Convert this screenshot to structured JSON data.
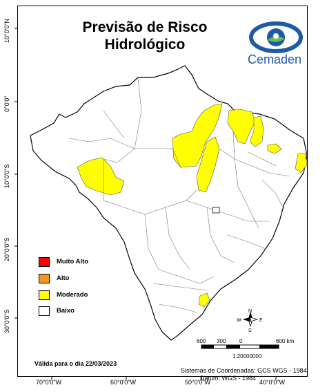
{
  "title": {
    "line1": "Previsão de Risco",
    "line2": "Hidrológico"
  },
  "logo": {
    "text": "Cemaden"
  },
  "axes": {
    "latitudes": [
      "10°0'0\"N",
      "0°0'0\"",
      "10°0'0\"S",
      "20°0'0\"S",
      "30°0'0\"S"
    ],
    "longitudes": [
      "70°0'0\"W",
      "60°0'0\"W",
      "50°0'0\"W",
      "40°0'0\"W"
    ]
  },
  "legend": [
    {
      "label": "Muito Alto",
      "color": "#ff0000"
    },
    {
      "label": "Alto",
      "color": "#f7941d"
    },
    {
      "label": "Moderado",
      "color": "#ffff00"
    },
    {
      "label": "Baixo",
      "color": "#ffffff"
    }
  ],
  "valid_date": "Válida para o dia 22/03/2023",
  "crs": {
    "line1": "Sistemas de Coordenadas: GCS WGS - 1984",
    "line2": "Datum: WGS - 1984"
  },
  "scale": {
    "labels": [
      "600",
      "300",
      "0",
      "600 km"
    ],
    "ratio": "1:20000000"
  },
  "north_arrow": {
    "n": "N",
    "s": "S",
    "e": "E",
    "w": "W"
  },
  "colors": {
    "moderate": "#ffff00",
    "low": "#ffffff",
    "logo_blue": "#1f5aa6",
    "logo_green": "#6cc04a"
  }
}
